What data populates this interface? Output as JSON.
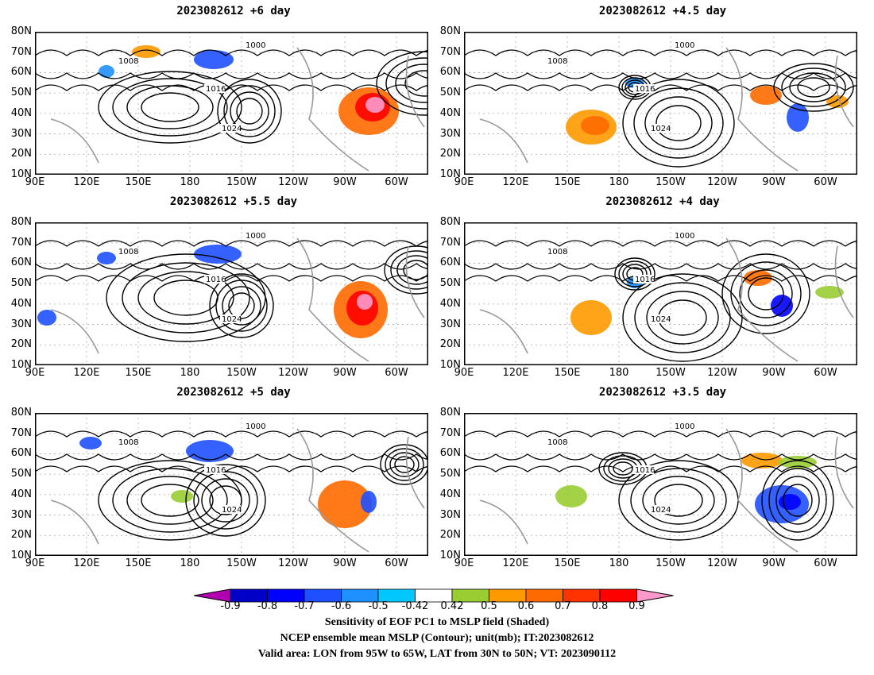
{
  "panels": [
    {
      "title": "2023082612 +6 day"
    },
    {
      "title": "2023082612 +4.5 day"
    },
    {
      "title": "2023082612 +5.5 day"
    },
    {
      "title": "2023082612 +4 day"
    },
    {
      "title": "2023082612 +5 day"
    },
    {
      "title": "2023082612 +3.5 day"
    }
  ],
  "lat_labels": [
    "80N",
    "70N",
    "60N",
    "50N",
    "40N",
    "30N",
    "20N",
    "10N"
  ],
  "lon_labels": [
    "90E",
    "120E",
    "150E",
    "180",
    "150W",
    "120W",
    "90W",
    "60W"
  ],
  "contour_labels": [
    "1000",
    "1008",
    "1016",
    "1024"
  ],
  "colorbar": {
    "labels": [
      "-0.9",
      "-0.8",
      "-0.7",
      "-0.6",
      "-0.5",
      "-0.42",
      "0.42",
      "0.5",
      "0.6",
      "0.7",
      "0.8",
      "0.9"
    ],
    "colors": [
      "#b000b0",
      "#0000c8",
      "#0000ff",
      "#1e50ff",
      "#1e90ff",
      "#00c8ff",
      "#ffffff",
      "#9acd32",
      "#ff9900",
      "#ff6a00",
      "#ff3300",
      "#ff0000",
      "#ff99cc"
    ]
  },
  "footer": {
    "line1": "Sensitivity of EOF PC1 to MSLP field (Shaded)",
    "line2": "NCEP ensemble mean MSLP (Contour); unit(mb); IT:2023082612",
    "line3": "Valid area: LON from 95W to 65W, LAT from 30N to 50N; VT: 2023090112"
  }
}
